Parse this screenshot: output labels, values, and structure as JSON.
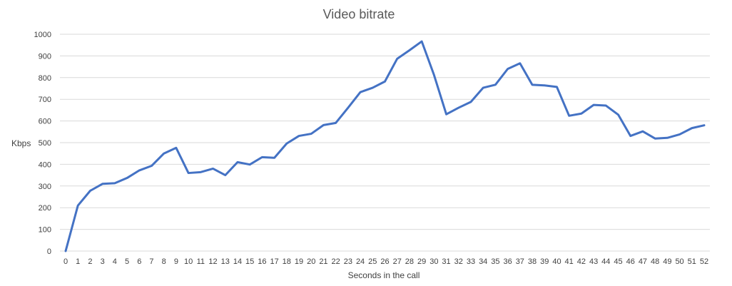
{
  "chart_data": {
    "type": "line",
    "title": "Video bitrate",
    "xlabel": "Seconds in the call",
    "ylabel": "Kbps",
    "ylim": [
      0,
      1000
    ],
    "yticks": [
      0,
      100,
      200,
      300,
      400,
      500,
      600,
      700,
      800,
      900,
      1000
    ],
    "grid": true,
    "legend": "none",
    "line_color": "#4472C4",
    "gridline_color": "#D9D9D9",
    "categories": [
      "0",
      "1",
      "2",
      "3",
      "4",
      "5",
      "6",
      "7",
      "8",
      "9",
      "10",
      "11",
      "12",
      "13",
      "14",
      "15",
      "16",
      "17",
      "18",
      "19",
      "20",
      "21",
      "22",
      "23",
      "24",
      "25",
      "26",
      "27",
      "28",
      "29",
      "30",
      "31",
      "32",
      "33",
      "34",
      "35",
      "36",
      "37",
      "38",
      "39",
      "40",
      "41",
      "42",
      "43",
      "44",
      "45",
      "46",
      "47",
      "48",
      "49",
      "50",
      "51",
      "52"
    ],
    "series": [
      {
        "values": [
          0,
          210,
          278,
          310,
          313,
          337,
          372,
          393,
          450,
          476,
          360,
          364,
          380,
          350,
          410,
          399,
          433,
          430,
          496,
          531,
          541,
          581,
          591,
          661,
          733,
          753,
          782,
          887,
          926,
          967,
          812,
          631,
          661,
          688,
          753,
          767,
          840,
          866,
          767,
          764,
          757,
          624,
          634,
          674,
          671,
          629,
          531,
          552,
          519,
          522,
          538,
          567,
          580
        ]
      }
    ]
  }
}
